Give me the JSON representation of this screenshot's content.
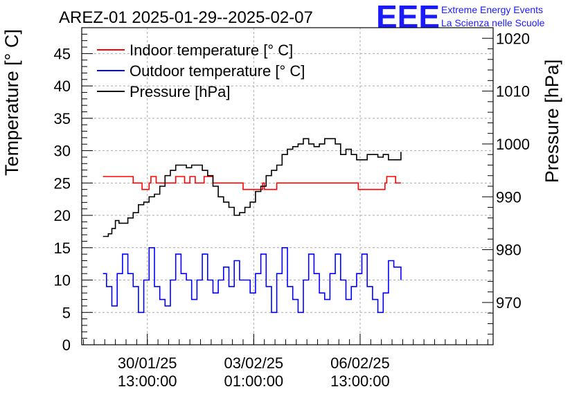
{
  "header": {
    "title": "AREZ-01 2025-01-29--2025-02-07",
    "logo_text": "EEE",
    "brand_line1": "Extreme Energy Events",
    "brand_line2": "La Scienza nelle Scuole",
    "brand_color": "#1a1aff"
  },
  "chart_data": {
    "type": "line",
    "title": "AREZ-01 2025-01-29--2025-02-07",
    "ylabel": "Temperature [° C]",
    "y2label": "Pressure [hPa]",
    "ylim": [
      0,
      49
    ],
    "y2lim": [
      962,
      1022
    ],
    "yticks": [
      "0",
      "5",
      "10",
      "15",
      "20",
      "25",
      "30",
      "35",
      "40",
      "45"
    ],
    "y2ticks": [
      "970",
      "980",
      "990",
      "1000",
      "1010",
      "1020"
    ],
    "x_range_hours": [
      0,
      232
    ],
    "xticks": [
      {
        "hour": 37,
        "line1": "30/01/25",
        "line2": "13:00:00"
      },
      {
        "hour": 97,
        "line1": "03/02/25",
        "line2": "01:00:00"
      },
      {
        "hour": 157,
        "line1": "06/02/25",
        "line2": "13:00:00"
      }
    ],
    "grid": true,
    "legend_position": "top-left",
    "series": [
      {
        "name": "Indoor temperature [° C]",
        "axis": "left",
        "color": "#ff0000",
        "x": [
          12,
          28,
          29,
          33,
          34,
          38,
          39,
          41,
          42,
          52,
          53,
          57,
          58,
          60,
          61,
          63,
          64,
          68,
          69,
          73,
          74,
          90,
          91,
          102,
          103,
          110,
          111,
          155,
          156,
          171,
          172,
          176,
          177,
          180
        ],
        "values": [
          26,
          26,
          25,
          25,
          24,
          25,
          26,
          26,
          25,
          25,
          26,
          26,
          25,
          25,
          26,
          26,
          25,
          25,
          26,
          26,
          25,
          25,
          24,
          25,
          24,
          25,
          25,
          25,
          24,
          25,
          26,
          26,
          25,
          25
        ]
      },
      {
        "name": "Outdoor temperature [° C]",
        "axis": "left",
        "color": "#0000ff",
        "x": [
          12,
          14,
          17,
          20,
          23,
          26,
          29,
          32,
          35,
          38,
          41,
          44,
          47,
          50,
          53,
          56,
          59,
          62,
          65,
          68,
          71,
          74,
          77,
          80,
          83,
          86,
          89,
          92,
          95,
          98,
          101,
          104,
          107,
          110,
          113,
          116,
          119,
          122,
          125,
          128,
          131,
          134,
          137,
          140,
          143,
          146,
          149,
          152,
          155,
          158,
          161,
          164,
          167,
          170,
          173,
          176,
          180
        ],
        "values": [
          11,
          9,
          6,
          11,
          14,
          11,
          9,
          5,
          10,
          15,
          9,
          7,
          6,
          10,
          14,
          11,
          10,
          7,
          10,
          14,
          10,
          8,
          10,
          12,
          9,
          13,
          10,
          10,
          8,
          11,
          14,
          9,
          5,
          11,
          15,
          9,
          7,
          5,
          10,
          14,
          11,
          8,
          7,
          11,
          14,
          10,
          7,
          9,
          11,
          14,
          9,
          7,
          5,
          8,
          13,
          12,
          10
        ]
      },
      {
        "name": "Pressure [hPa]",
        "axis": "right",
        "color": "#000000",
        "x": [
          12,
          15,
          17,
          19,
          21,
          23,
          26,
          29,
          32,
          35,
          38,
          41,
          44,
          47,
          50,
          53,
          56,
          59,
          62,
          65,
          68,
          71,
          74,
          77,
          80,
          83,
          86,
          89,
          92,
          95,
          98,
          101,
          104,
          107,
          110,
          113,
          116,
          119,
          122,
          125,
          128,
          131,
          134,
          137,
          140,
          143,
          146,
          149,
          152,
          155,
          158,
          161,
          164,
          167,
          170,
          173,
          176,
          180
        ],
        "values": [
          982.5,
          983,
          984,
          985.5,
          985,
          985,
          986,
          987,
          988.5,
          989,
          990,
          990.5,
          992,
          994,
          995,
          996,
          996,
          995.5,
          996,
          996,
          995,
          994,
          992,
          990,
          989,
          988,
          986.5,
          987,
          988,
          989,
          991,
          992,
          994,
          995,
          996,
          998,
          999,
          999.5,
          1000,
          1001,
          1000,
          999.5,
          1000,
          1001,
          1001,
          1000,
          998,
          999,
          998,
          997,
          997,
          998,
          998,
          997.5,
          998,
          997,
          997,
          998.5
        ]
      }
    ]
  }
}
